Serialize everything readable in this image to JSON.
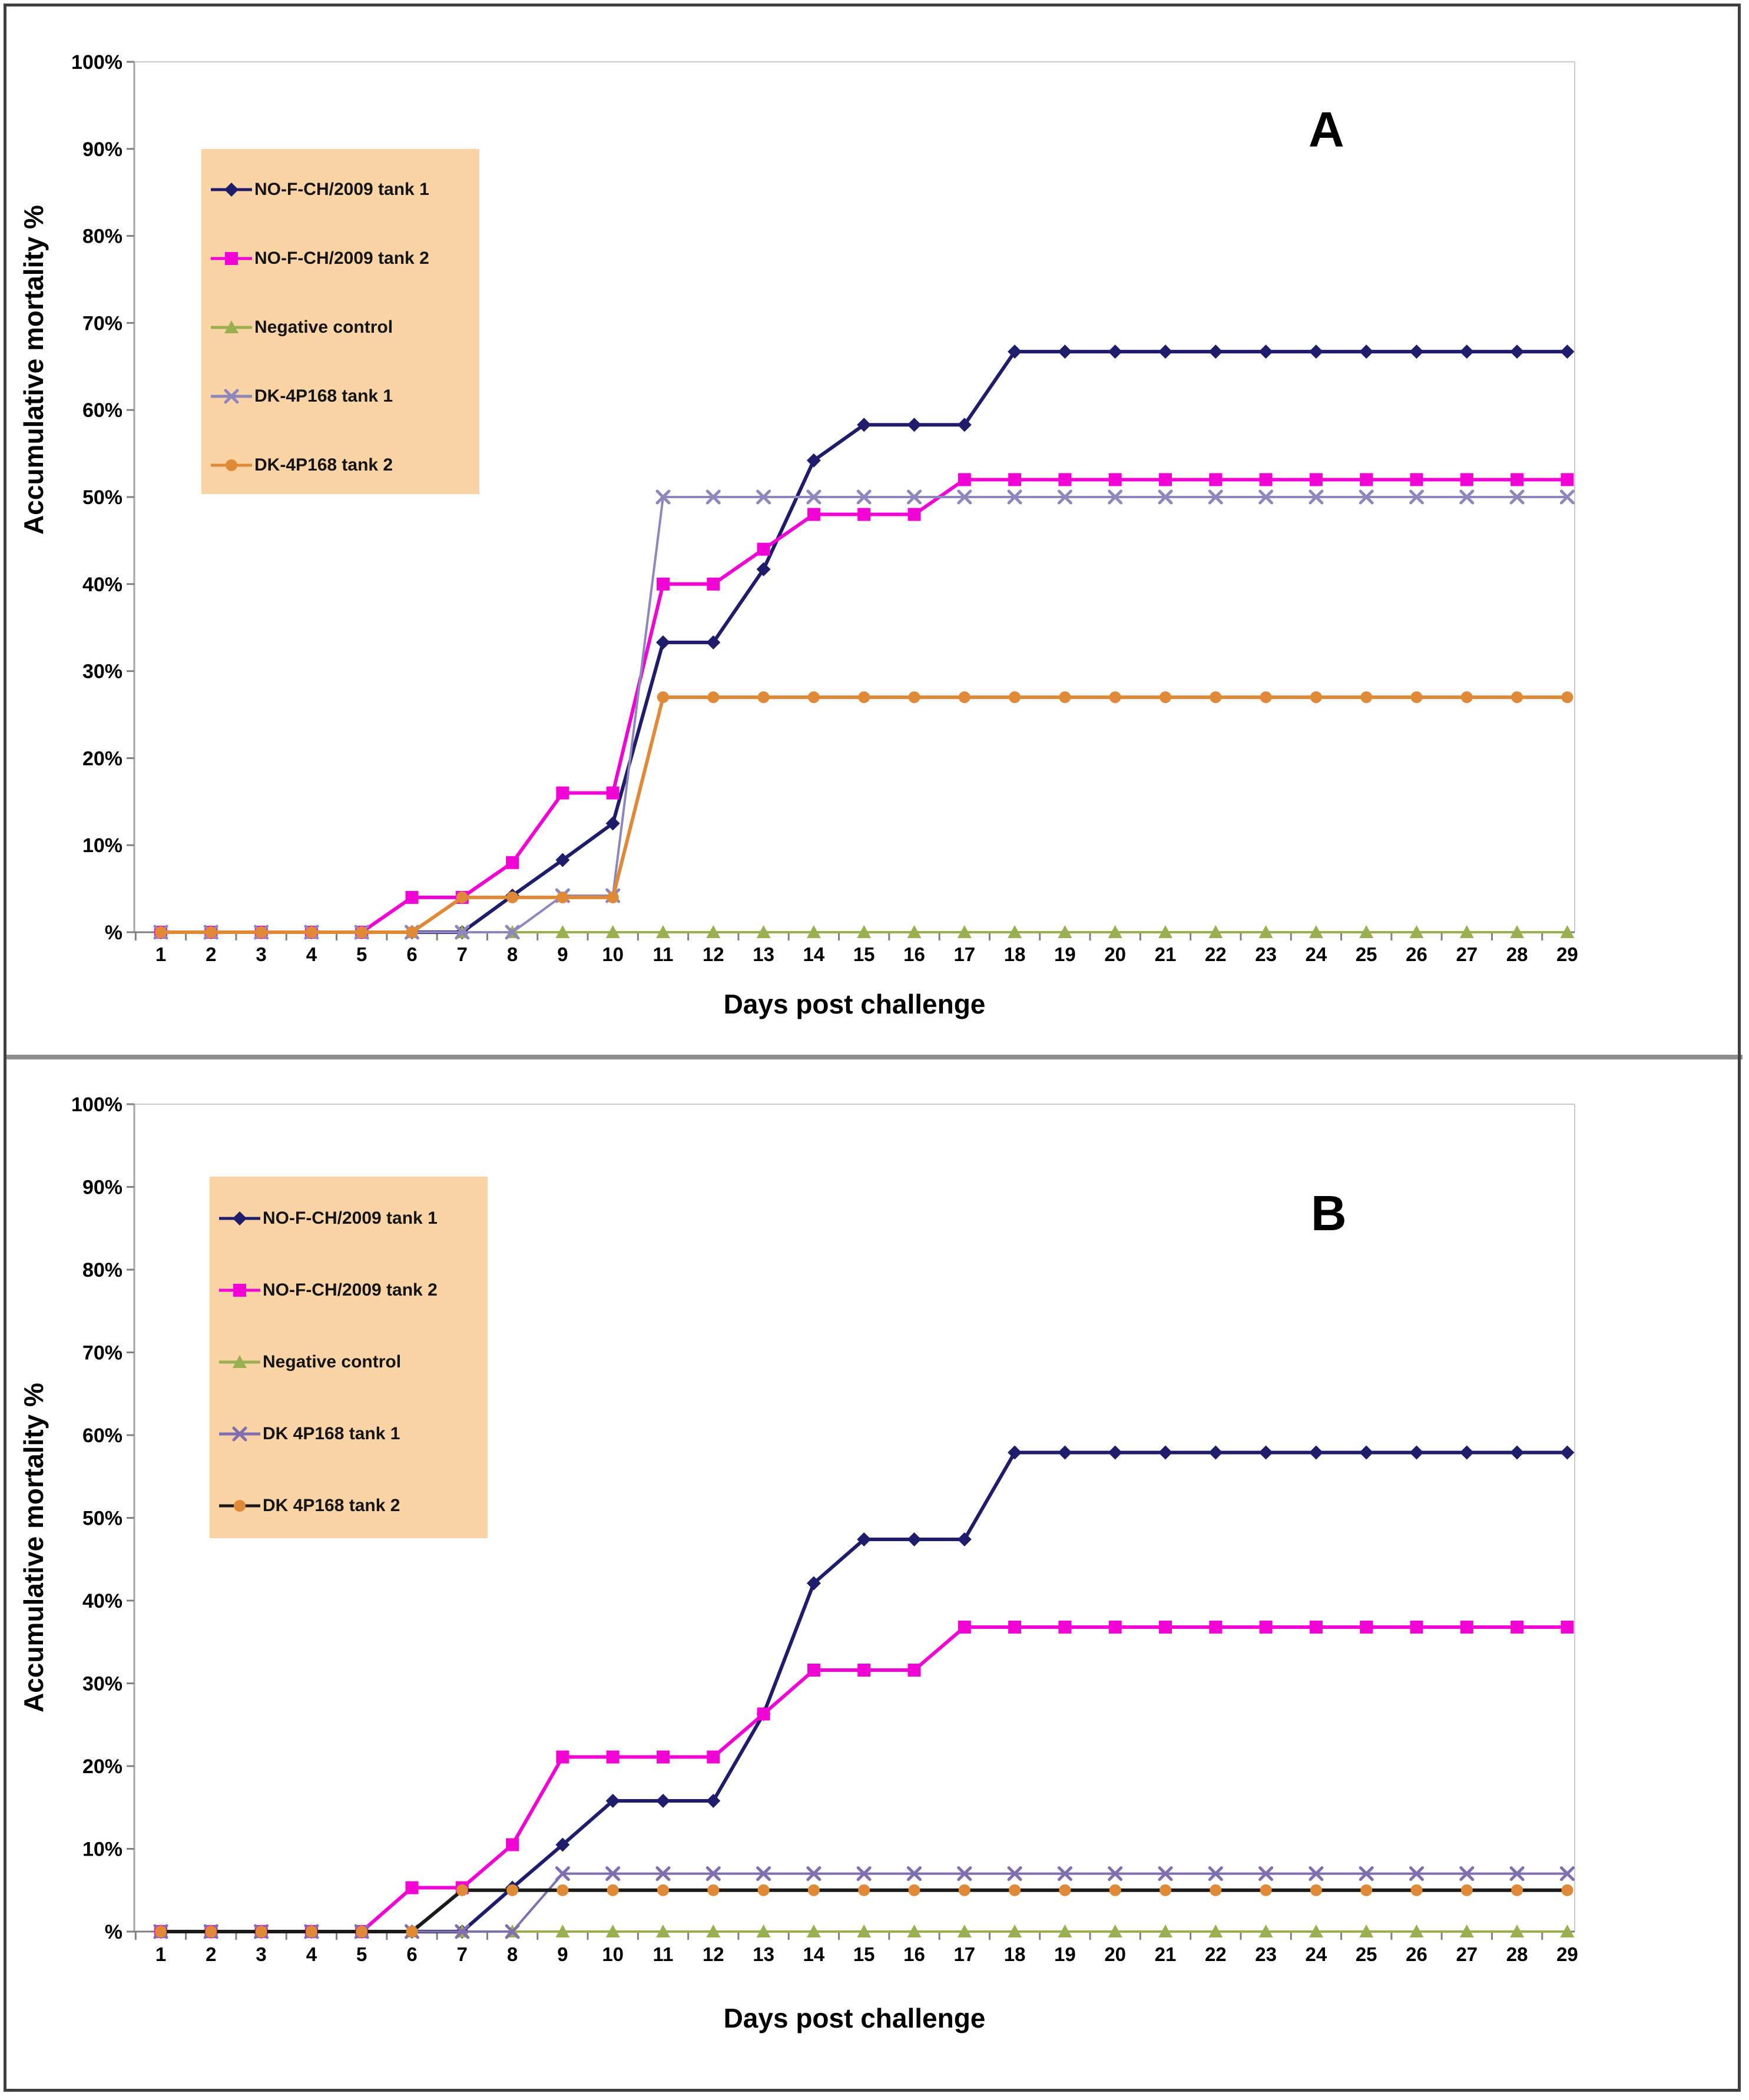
{
  "figure": {
    "type": "two-panel cumulative mortality line chart",
    "background": "#FFFFFF",
    "frame_color": "#3F3F3F",
    "divider_color": "#8F8F8F"
  },
  "chart_data": [
    {
      "type": "line",
      "panel_label": "A",
      "xlabel": "Days post challenge",
      "ylabel": "Accumulative mortality %",
      "ylim": [
        0,
        100
      ],
      "grid": false,
      "legend_position": "upper-left",
      "legend_bg": "#FAD4A4",
      "y_tick_labels": [
        "100%",
        "90%",
        "80%",
        "70%",
        "60%",
        "50%",
        "40%",
        "30%",
        "20%",
        "10%",
        "%"
      ],
      "x": [
        1,
        2,
        3,
        4,
        5,
        6,
        7,
        8,
        9,
        10,
        11,
        12,
        13,
        14,
        15,
        16,
        17,
        18,
        19,
        20,
        21,
        22,
        23,
        24,
        25,
        26,
        27,
        28,
        29
      ],
      "series": [
        {
          "name": "NO-F-CH/2009 tank 1",
          "marker": "diamond",
          "color": "#1F1C6B",
          "values": [
            0,
            0,
            0,
            0,
            0,
            0,
            0,
            4.2,
            8.3,
            12.5,
            33.3,
            33.3,
            41.7,
            54.2,
            58.3,
            58.3,
            58.3,
            66.7,
            66.7,
            66.7,
            66.7,
            66.7,
            66.7,
            66.7,
            66.7,
            66.7,
            66.7,
            66.7,
            66.7
          ]
        },
        {
          "name": "NO-F-CH/2009 tank 2",
          "marker": "square",
          "color": "#F203D5",
          "values": [
            0,
            0,
            0,
            0,
            0,
            4,
            4,
            8,
            16,
            16,
            40,
            40,
            44,
            48,
            48,
            48,
            52,
            52,
            52,
            52,
            52,
            52,
            52,
            52,
            52,
            52,
            52,
            52,
            52
          ]
        },
        {
          "name": "Negative control",
          "marker": "triangle",
          "color": "#9AAF50",
          "values": [
            0,
            0,
            0,
            0,
            0,
            0,
            0,
            0,
            0,
            0,
            0,
            0,
            0,
            0,
            0,
            0,
            0,
            0,
            0,
            0,
            0,
            0,
            0,
            0,
            0,
            0,
            0,
            0,
            0
          ]
        },
        {
          "name": "DK-4P168 tank 1",
          "marker": "x",
          "color": "#8F86BD",
          "values": [
            0,
            0,
            0,
            0,
            0,
            0,
            0,
            0,
            4.2,
            4.2,
            50,
            50,
            50,
            50,
            50,
            50,
            50,
            50,
            50,
            50,
            50,
            50,
            50,
            50,
            50,
            50,
            50,
            50,
            50
          ]
        },
        {
          "name": "DK-4P168 tank 2",
          "marker": "circle",
          "color": "#E08A38",
          "values": [
            0,
            0,
            0,
            0,
            0,
            0,
            4,
            4,
            4,
            4,
            27,
            27,
            27,
            27,
            27,
            27,
            27,
            27,
            27,
            27,
            27,
            27,
            27,
            27,
            27,
            27,
            27,
            27,
            27
          ]
        }
      ]
    },
    {
      "type": "line",
      "panel_label": "B",
      "xlabel": "Days post challenge",
      "ylabel": "Accumulative mortality %",
      "ylim": [
        0,
        100
      ],
      "grid": false,
      "legend_position": "upper-left",
      "legend_bg": "#FAD4A4",
      "y_tick_labels": [
        "100%",
        "90%",
        "80%",
        "70%",
        "60%",
        "50%",
        "40%",
        "30%",
        "20%",
        "10%",
        "%"
      ],
      "x": [
        1,
        2,
        3,
        4,
        5,
        6,
        7,
        8,
        9,
        10,
        11,
        12,
        13,
        14,
        15,
        16,
        17,
        18,
        19,
        20,
        21,
        22,
        23,
        24,
        25,
        26,
        27,
        28,
        29
      ],
      "series": [
        {
          "name": "NO-F-CH/2009 tank 1",
          "marker": "diamond",
          "color": "#1F1C6B",
          "values": [
            0,
            0,
            0,
            0,
            0,
            0,
            0,
            5.3,
            10.5,
            15.8,
            15.8,
            15.8,
            26.3,
            42.1,
            47.4,
            47.4,
            47.4,
            57.9,
            57.9,
            57.9,
            57.9,
            57.9,
            57.9,
            57.9,
            57.9,
            57.9,
            57.9,
            57.9,
            57.9
          ]
        },
        {
          "name": "NO-F-CH/2009 tank 2",
          "marker": "square",
          "color": "#F203D5",
          "values": [
            0,
            0,
            0,
            0,
            0,
            5.3,
            5.3,
            10.5,
            21.1,
            21.1,
            21.1,
            21.1,
            26.3,
            31.6,
            31.6,
            31.6,
            36.8,
            36.8,
            36.8,
            36.8,
            36.8,
            36.8,
            36.8,
            36.8,
            36.8,
            36.8,
            36.8,
            36.8,
            36.8
          ]
        },
        {
          "name": "Negative control",
          "marker": "triangle",
          "color": "#9AAF50",
          "values": [
            0,
            0,
            0,
            0,
            0,
            0,
            0,
            0,
            0,
            0,
            0,
            0,
            0,
            0,
            0,
            0,
            0,
            0,
            0,
            0,
            0,
            0,
            0,
            0,
            0,
            0,
            0,
            0,
            0
          ]
        },
        {
          "name": "DK 4P168 tank 1",
          "marker": "x",
          "color": "#7F6FB0",
          "values": [
            0,
            0,
            0,
            0,
            0,
            0,
            0,
            0,
            7,
            7,
            7,
            7,
            7,
            7,
            7,
            7,
            7,
            7,
            7,
            7,
            7,
            7,
            7,
            7,
            7,
            7,
            7,
            7,
            7
          ]
        },
        {
          "name": "DK 4P168 tank 2",
          "marker": "circle",
          "color": "#E08A38",
          "line_color": "#1A1A1A",
          "values": [
            0,
            0,
            0,
            0,
            0,
            0,
            5,
            5,
            5,
            5,
            5,
            5,
            5,
            5,
            5,
            5,
            5,
            5,
            5,
            5,
            5,
            5,
            5,
            5,
            5,
            5,
            5,
            5,
            5
          ]
        }
      ]
    }
  ]
}
